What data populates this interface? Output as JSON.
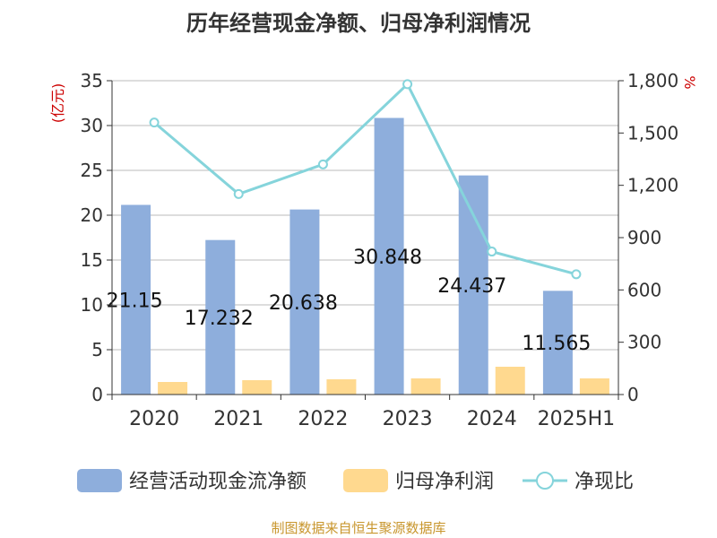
{
  "title": "历年经营现金净额、归母净利润情况",
  "source": "制图数据来自恒生聚源数据库",
  "colors": {
    "cash_bar": "#8eaedc",
    "profit_bar": "#ffd98f",
    "ratio_line": "#85d4db",
    "axis": "#333333",
    "grid": "#bbbbbb",
    "unit_label": "#cc0000",
    "source": "#c8962d"
  },
  "chart_data": {
    "type": "bar",
    "categories": [
      "2020",
      "2021",
      "2022",
      "2023",
      "2024",
      "2025H1"
    ],
    "series": [
      {
        "name": "经营活动现金流净额",
        "kind": "bar",
        "axis": "left",
        "values": [
          21.15,
          17.232,
          20.638,
          30.848,
          24.437,
          11.565
        ],
        "labels": [
          "21.15",
          "17.232",
          "20.638",
          "30.848",
          "24.437",
          "11.565"
        ]
      },
      {
        "name": "归母净利润",
        "kind": "bar",
        "axis": "left",
        "values": [
          1.4,
          1.6,
          1.7,
          1.8,
          3.1,
          1.8
        ]
      },
      {
        "name": "净现比",
        "kind": "line",
        "axis": "right",
        "values": [
          1560,
          1150,
          1320,
          1780,
          820,
          690
        ]
      }
    ],
    "y_left": {
      "label": "(亿元)",
      "min": 0,
      "max": 35,
      "ticks": [
        0,
        5,
        10,
        15,
        20,
        25,
        30,
        35
      ]
    },
    "y_right": {
      "label": "%",
      "min": 0,
      "max": 1800,
      "ticks": [
        0,
        300,
        600,
        900,
        1200,
        1500,
        1800
      ],
      "tick_labels": [
        "0",
        "300",
        "600",
        "900",
        "1,200",
        "1,500",
        "1,800"
      ]
    },
    "grid": true,
    "legend_position": "bottom"
  }
}
